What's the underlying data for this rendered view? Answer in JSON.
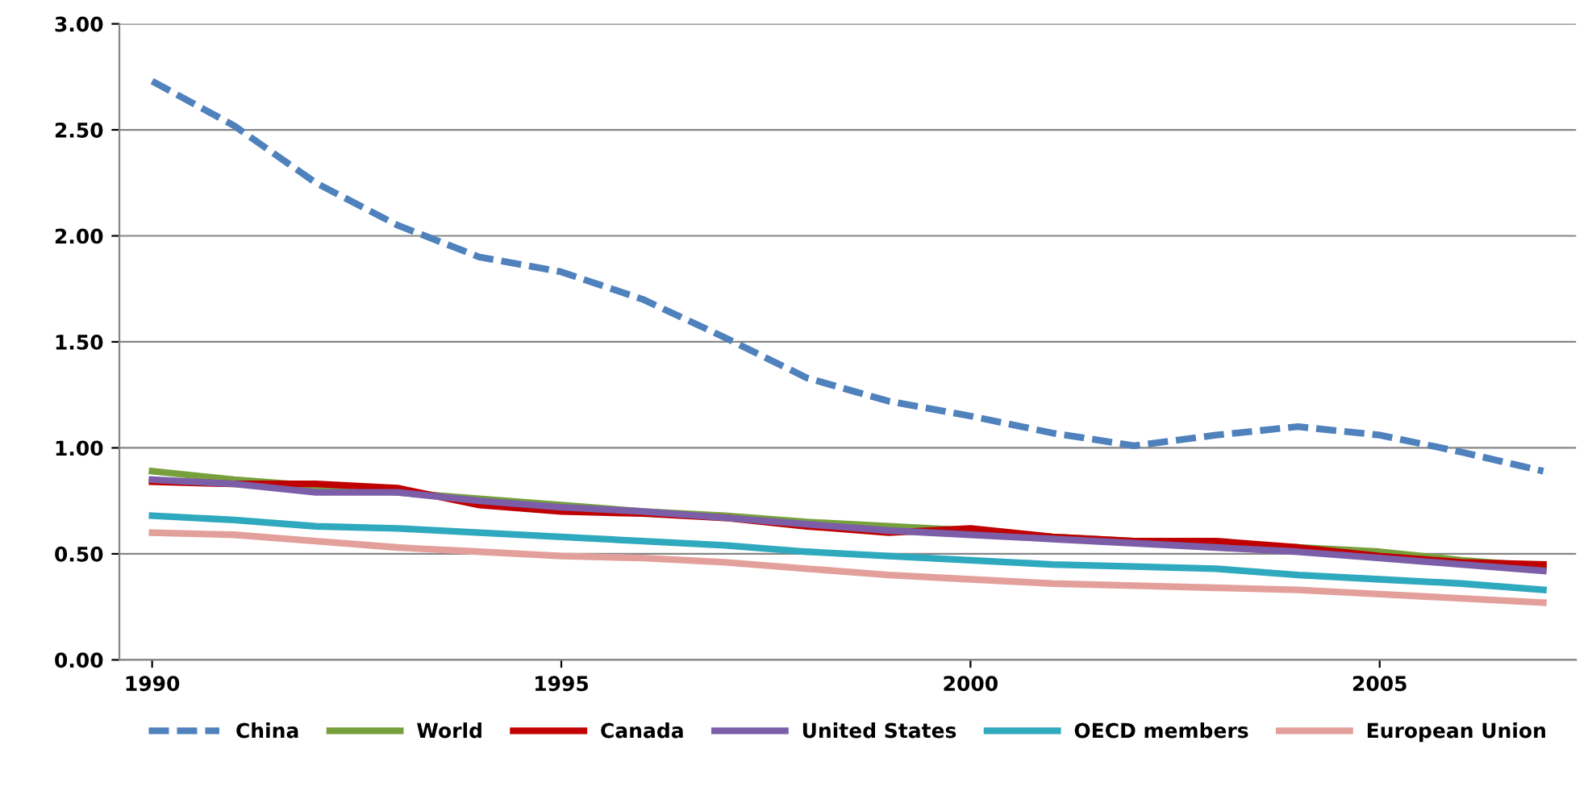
{
  "chart_data": {
    "type": "line",
    "x": [
      1990,
      1991,
      1992,
      1993,
      1994,
      1995,
      1996,
      1997,
      1998,
      1999,
      2000,
      2001,
      2002,
      2003,
      2004,
      2005,
      2006,
      2007
    ],
    "xlim": [
      1989.6,
      2007.4
    ],
    "xticks": [
      1990,
      1995,
      2000,
      2005
    ],
    "ylim": [
      0,
      3
    ],
    "yticks": [
      {
        "value": 0,
        "label": "0.00"
      },
      {
        "value": 0.5,
        "label": "0.50"
      },
      {
        "value": 1,
        "label": "1.00"
      },
      {
        "value": 1.5,
        "label": "1.50"
      },
      {
        "value": 2,
        "label": "2.00"
      },
      {
        "value": 2.5,
        "label": "2.50"
      },
      {
        "value": 3,
        "label": "3.00"
      }
    ],
    "grid": "y",
    "legend": "bottom",
    "marker": "none",
    "series": [
      {
        "name": "China",
        "color": "#4f81bd",
        "line_style": "dashed",
        "values": [
          2.73,
          2.52,
          2.25,
          2.05,
          1.9,
          1.83,
          1.7,
          1.52,
          1.33,
          1.22,
          1.15,
          1.07,
          1.01,
          1.06,
          1.1,
          1.06,
          0.98,
          0.89
        ]
      },
      {
        "name": "World",
        "color": "#77a03c",
        "line_style": "solid",
        "values": [
          0.89,
          0.85,
          0.82,
          0.79,
          0.76,
          0.73,
          0.7,
          0.68,
          0.65,
          0.63,
          0.61,
          0.58,
          0.56,
          0.55,
          0.53,
          0.51,
          0.47,
          0.44
        ]
      },
      {
        "name": "Canada",
        "color": "#c00000",
        "line_style": "solid",
        "values": [
          0.84,
          0.83,
          0.83,
          0.81,
          0.73,
          0.7,
          0.69,
          0.67,
          0.63,
          0.6,
          0.62,
          0.58,
          0.56,
          0.56,
          0.53,
          0.49,
          0.46,
          0.45
        ]
      },
      {
        "name": "United States",
        "color": "#7b5ea7",
        "line_style": "solid",
        "values": [
          0.85,
          0.83,
          0.79,
          0.79,
          0.75,
          0.72,
          0.7,
          0.67,
          0.64,
          0.61,
          0.59,
          0.57,
          0.55,
          0.53,
          0.51,
          0.48,
          0.45,
          0.42
        ]
      },
      {
        "name": "OECD members",
        "color": "#2fa9bd",
        "line_style": "solid",
        "values": [
          0.68,
          0.66,
          0.63,
          0.62,
          0.6,
          0.58,
          0.56,
          0.54,
          0.51,
          0.49,
          0.47,
          0.45,
          0.44,
          0.43,
          0.4,
          0.38,
          0.36,
          0.33
        ]
      },
      {
        "name": "European Union",
        "color": "#e3a09b",
        "line_style": "solid",
        "values": [
          0.6,
          0.59,
          0.56,
          0.53,
          0.51,
          0.49,
          0.48,
          0.46,
          0.43,
          0.4,
          0.38,
          0.36,
          0.35,
          0.34,
          0.33,
          0.31,
          0.29,
          0.27
        ]
      }
    ]
  }
}
